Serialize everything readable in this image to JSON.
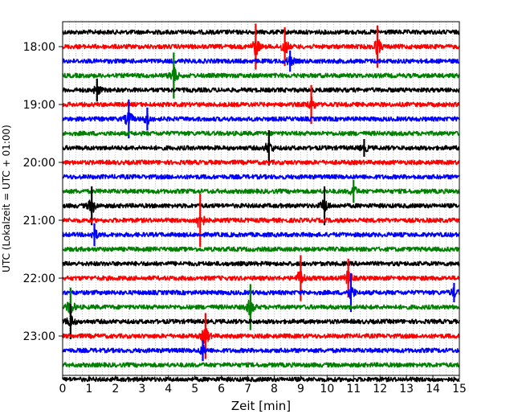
{
  "chart_data": {
    "type": "line",
    "title": "",
    "xlabel": "Zeit  [min]",
    "ylabel": "UTC (Lokalzeit = UTC + 01:00)",
    "xlim": [
      0,
      15
    ],
    "x_ticks": [
      0,
      1,
      2,
      3,
      4,
      5,
      6,
      7,
      8,
      9,
      10,
      11,
      12,
      13,
      14,
      15
    ],
    "minor_grid_step_min": 0.25,
    "grid": true,
    "start_time": "17:45",
    "trace_interval_min": 15,
    "trace_count": 25,
    "trace_color_cycle": [
      "#000000",
      "#ff0000",
      "#0000ff",
      "#008000"
    ],
    "y_ticks": [
      {
        "label": "18:00",
        "trace": 1
      },
      {
        "label": "19:00",
        "trace": 5
      },
      {
        "label": "20:00",
        "trace": 9
      },
      {
        "label": "21:00",
        "trace": 13
      },
      {
        "label": "22:00",
        "trace": 17
      },
      {
        "label": "23:00",
        "trace": 21
      }
    ],
    "events": [
      {
        "trace": 1,
        "minute": 7.3,
        "amplitude": 2.6
      },
      {
        "trace": 1,
        "minute": 8.4,
        "amplitude": 2.2
      },
      {
        "trace": 1,
        "minute": 11.9,
        "amplitude": 2.4
      },
      {
        "trace": 2,
        "minute": 8.6,
        "amplitude": 1.2
      },
      {
        "trace": 3,
        "minute": 4.2,
        "amplitude": 2.6
      },
      {
        "trace": 4,
        "minute": 1.3,
        "amplitude": 1.3
      },
      {
        "trace": 5,
        "minute": 9.4,
        "amplitude": 2.2
      },
      {
        "trace": 6,
        "minute": 2.5,
        "amplitude": 2.2
      },
      {
        "trace": 6,
        "minute": 3.2,
        "amplitude": 1.3
      },
      {
        "trace": 8,
        "minute": 7.8,
        "amplitude": 2.0
      },
      {
        "trace": 8,
        "minute": 11.4,
        "amplitude": 1.0
      },
      {
        "trace": 11,
        "minute": 11.0,
        "amplitude": 1.3
      },
      {
        "trace": 12,
        "minute": 1.1,
        "amplitude": 2.2
      },
      {
        "trace": 12,
        "minute": 9.9,
        "amplitude": 2.2
      },
      {
        "trace": 13,
        "minute": 5.2,
        "amplitude": 3.0
      },
      {
        "trace": 14,
        "minute": 1.2,
        "amplitude": 1.3
      },
      {
        "trace": 17,
        "minute": 9.0,
        "amplitude": 2.6
      },
      {
        "trace": 17,
        "minute": 10.8,
        "amplitude": 2.2
      },
      {
        "trace": 18,
        "minute": 10.9,
        "amplitude": 2.2
      },
      {
        "trace": 18,
        "minute": 14.8,
        "amplitude": 1.1
      },
      {
        "trace": 19,
        "minute": 7.1,
        "amplitude": 2.6
      },
      {
        "trace": 19,
        "minute": 0.3,
        "amplitude": 2.2
      },
      {
        "trace": 20,
        "minute": 0.3,
        "amplitude": 2.0
      },
      {
        "trace": 21,
        "minute": 5.4,
        "amplitude": 2.6
      },
      {
        "trace": 22,
        "minute": 5.3,
        "amplitude": 1.2
      }
    ]
  }
}
